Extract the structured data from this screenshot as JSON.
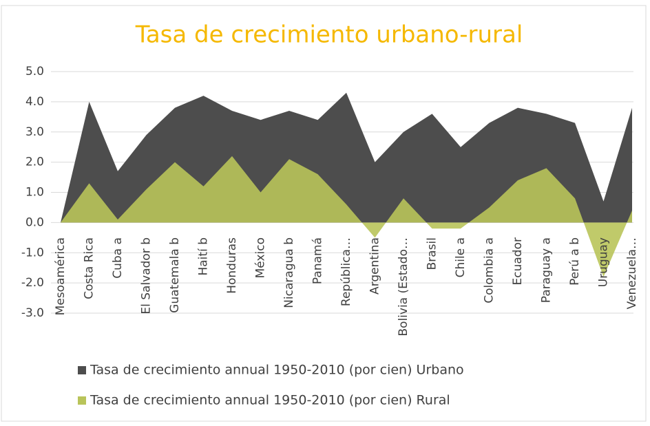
{
  "chart_data": {
    "type": "area",
    "title": "Tasa de crecimiento urbano-rural",
    "categories": [
      "Mesoamérica",
      "Costa Rica",
      "Cuba a",
      "El Salvador b",
      "Guatemala b",
      "Haití b",
      "Honduras",
      "México",
      "Nicaragua b",
      "Panamá",
      "República…",
      "Argentina",
      "Bolivia (Estado…",
      "Brasil",
      "Chile a",
      "Colombia a",
      "Ecuador",
      "Paraguay a",
      "Perú a b",
      "Uruguay",
      "Venezuela…"
    ],
    "series": [
      {
        "name": "Tasa de crecimiento annual 1950-2010 (por cien) Urbano",
        "color": "#4d4d4d",
        "values": [
          0,
          4.0,
          1.7,
          2.9,
          3.8,
          4.2,
          3.7,
          3.4,
          3.7,
          3.4,
          4.3,
          2.0,
          3.0,
          3.6,
          2.5,
          3.3,
          3.8,
          3.6,
          3.3,
          0.7,
          3.8
        ]
      },
      {
        "name": "Tasa de crecimiento annual 1950-2010 (por cien) Rural",
        "color": "#b9c45a",
        "values": [
          0,
          1.3,
          0.1,
          1.1,
          2.0,
          1.2,
          2.2,
          1.0,
          2.1,
          1.6,
          0.6,
          -0.5,
          0.8,
          -0.2,
          -0.2,
          0.5,
          1.4,
          1.8,
          0.8,
          -1.8,
          0.4
        ]
      }
    ],
    "ylim": [
      -3,
      5
    ],
    "yticks": [
      {
        "value": -3,
        "label": "-3.0"
      },
      {
        "value": -2,
        "label": "-2.0"
      },
      {
        "value": -1,
        "label": "-1.0"
      },
      {
        "value": 0,
        "label": "0.0"
      },
      {
        "value": 1,
        "label": "1.0"
      },
      {
        "value": 2,
        "label": "2.0"
      },
      {
        "value": 3,
        "label": "3.0"
      },
      {
        "value": 4,
        "label": "4.0"
      },
      {
        "value": 5,
        "label": "5.0"
      }
    ],
    "grid": true,
    "title_color": "#f5b800",
    "legend": "bottom"
  }
}
